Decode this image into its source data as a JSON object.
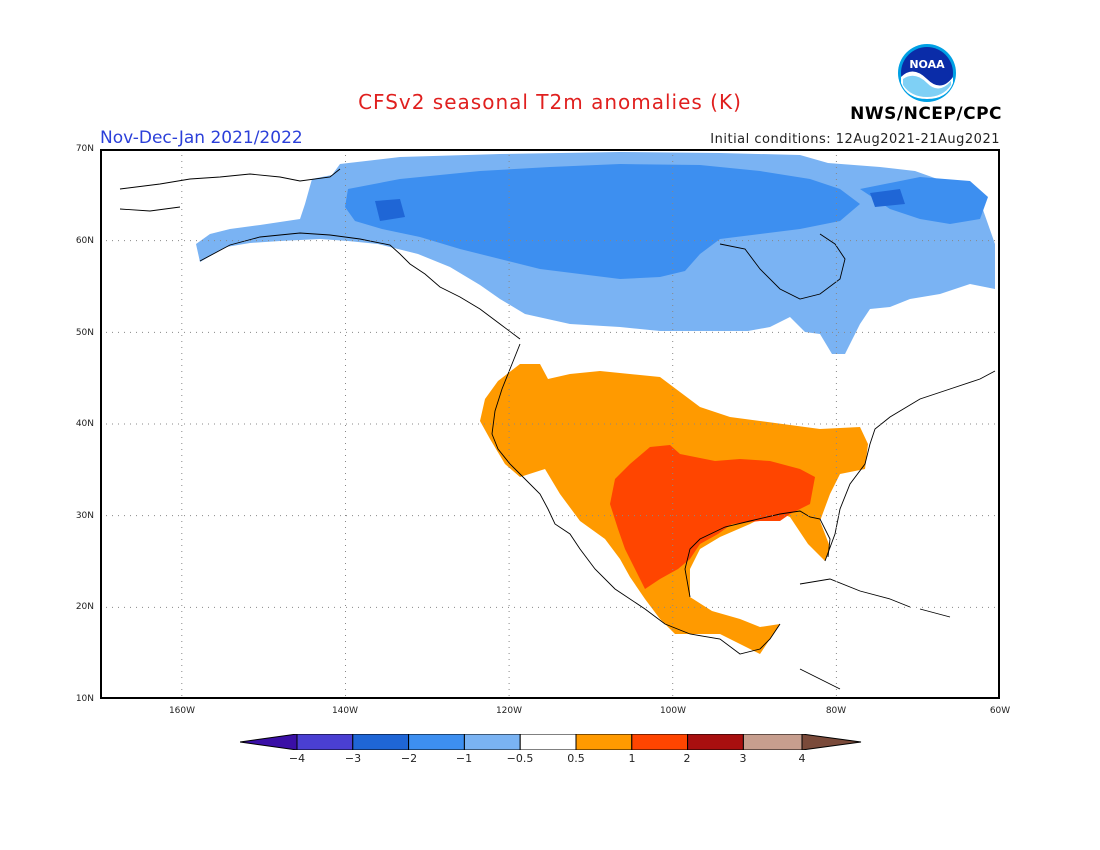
{
  "header": {
    "title": "CFSv2 seasonal T2m anomalies (K)",
    "period": "Nov-Dec-Jan 2021/2022",
    "initial_conditions": "Initial conditions: 12Aug2021-21Aug2021",
    "agency": "NWS/NCEP/CPC",
    "logo_text": "NOAA"
  },
  "axes": {
    "lat_labels": [
      "70N",
      "60N",
      "50N",
      "40N",
      "30N",
      "20N",
      "10N"
    ],
    "lon_labels": [
      "160W",
      "140W",
      "120W",
      "100W",
      "80W",
      "60W"
    ]
  },
  "colorbar": {
    "tick_labels": [
      "−4",
      "−3",
      "−2",
      "−1",
      "−0.5",
      "0.5",
      "1",
      "2",
      "3",
      "4"
    ],
    "colors": [
      "#3a0fa6",
      "#4a3fd2",
      "#1f66d6",
      "#3d8ff0",
      "#7ab3f3",
      "#ffffff",
      "#ff9a00",
      "#ff4500",
      "#a80f0f",
      "#c79e8e",
      "#7a4a3a"
    ]
  },
  "regions": [
    {
      "name": "anomaly-cold-moderate",
      "color": "#7ab3f3"
    },
    {
      "name": "anomaly-cold-strong",
      "color": "#3d8ff0"
    },
    {
      "name": "anomaly-cold-severe",
      "color": "#1f66d6"
    },
    {
      "name": "anomaly-warm-moderate",
      "color": "#ff9a00"
    },
    {
      "name": "anomaly-warm-strong",
      "color": "#ff4500"
    }
  ]
}
